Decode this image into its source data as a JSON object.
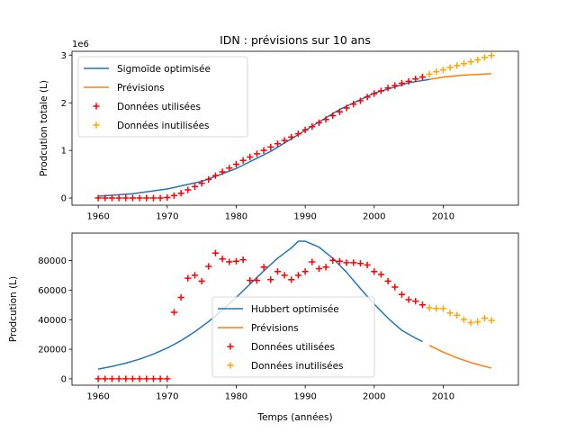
{
  "chart_data": [
    {
      "type": "line",
      "title": "IDN : prévisions sur 10 ans",
      "xlabel": "",
      "ylabel": "Prodcution totale (L)",
      "y_offset_label": "1e6",
      "xlim": [
        1956.2,
        2020.9
      ],
      "ylim": [
        -0.15,
        3.08
      ],
      "xticks": [
        1960,
        1970,
        1980,
        1990,
        2000,
        2010
      ],
      "yticks": [
        0,
        1,
        2,
        3
      ],
      "legend_position": "top-left",
      "legend": [
        "Sigmoïde optimisée",
        "Prévisions",
        "Données utilisées",
        "Données inutilisées"
      ],
      "series": [
        {
          "name": "Sigmoïde optimisée",
          "kind": "line",
          "color": "#1f77b4",
          "x": [
            1960,
            1965,
            1970,
            1975,
            1980,
            1985,
            1990,
            1995,
            2000,
            2005,
            2008
          ],
          "y": [
            0.04,
            0.09,
            0.19,
            0.35,
            0.62,
            0.98,
            1.42,
            1.86,
            2.2,
            2.42,
            2.49
          ]
        },
        {
          "name": "Prévisions",
          "kind": "line",
          "color": "#ff7f0e",
          "x": [
            2008,
            2010,
            2013,
            2017
          ],
          "y": [
            2.49,
            2.54,
            2.58,
            2.61
          ]
        },
        {
          "name": "Données utilisées",
          "kind": "marker",
          "color": "#ff0000",
          "x": [
            1960,
            1961,
            1962,
            1963,
            1964,
            1965,
            1966,
            1967,
            1968,
            1969,
            1970,
            1971,
            1972,
            1973,
            1974,
            1975,
            1976,
            1977,
            1978,
            1979,
            1980,
            1981,
            1982,
            1983,
            1984,
            1985,
            1986,
            1987,
            1988,
            1989,
            1990,
            1991,
            1992,
            1993,
            1994,
            1995,
            1996,
            1997,
            1998,
            1999,
            2000,
            2001,
            2002,
            2003,
            2004,
            2005,
            2006,
            2007
          ],
          "y": [
            0,
            0,
            0,
            0,
            0,
            0,
            0,
            0,
            0,
            0,
            0.01,
            0.05,
            0.1,
            0.17,
            0.24,
            0.31,
            0.39,
            0.47,
            0.55,
            0.63,
            0.71,
            0.79,
            0.86,
            0.93,
            1.0,
            1.07,
            1.14,
            1.21,
            1.28,
            1.35,
            1.43,
            1.5,
            1.58,
            1.65,
            1.73,
            1.81,
            1.89,
            1.97,
            2.04,
            2.12,
            2.19,
            2.25,
            2.31,
            2.36,
            2.41,
            2.45,
            2.5,
            2.54
          ]
        },
        {
          "name": "Données inutilisées",
          "kind": "marker",
          "color": "#ffa500",
          "x": [
            2008,
            2009,
            2010,
            2011,
            2012,
            2013,
            2014,
            2015,
            2016,
            2017
          ],
          "y": [
            2.6,
            2.65,
            2.69,
            2.74,
            2.78,
            2.82,
            2.86,
            2.9,
            2.95,
            2.99
          ]
        }
      ]
    },
    {
      "type": "line",
      "title": "",
      "xlabel": "Temps (années)",
      "ylabel": "Prodcution (L)",
      "xlim": [
        1956.2,
        2020.9
      ],
      "ylim": [
        -4300,
        98500
      ],
      "xticks": [
        1960,
        1970,
        1980,
        1990,
        2000,
        2010
      ],
      "yticks": [
        0,
        20000,
        40000,
        60000,
        80000
      ],
      "legend_position": "lower-center",
      "legend": [
        "Hubbert optimisée",
        "Prévisions",
        "Données utilisées",
        "Données inutilisées"
      ],
      "series": [
        {
          "name": "Hubbert optimisée",
          "kind": "line",
          "color": "#1f77b4",
          "x": [
            1960,
            1962,
            1964,
            1966,
            1968,
            1970,
            1972,
            1974,
            1976,
            1978,
            1980,
            1982,
            1984,
            1986,
            1988,
            1989,
            1990,
            1992,
            1994,
            1996,
            1998,
            2000,
            2002,
            2004,
            2006,
            2007
          ],
          "y": [
            6600,
            8400,
            10600,
            13300,
            16700,
            20800,
            25800,
            31800,
            38700,
            46500,
            55000,
            64000,
            73000,
            81500,
            88500,
            93000,
            93000,
            89000,
            81500,
            72000,
            61000,
            50500,
            41000,
            32800,
            27500,
            25200
          ]
        },
        {
          "name": "Prévisions",
          "kind": "line",
          "color": "#ff7f0e",
          "x": [
            2008,
            2010,
            2012,
            2014,
            2016,
            2017
          ],
          "y": [
            22600,
            18000,
            14200,
            11000,
            8400,
            7300
          ]
        },
        {
          "name": "Données utilisées",
          "kind": "marker",
          "color": "#ff0000",
          "x": [
            1960,
            1961,
            1962,
            1963,
            1964,
            1965,
            1966,
            1967,
            1968,
            1969,
            1970,
            1971,
            1972,
            1973,
            1974,
            1975,
            1976,
            1977,
            1978,
            1979,
            1980,
            1981,
            1982,
            1983,
            1984,
            1985,
            1986,
            1987,
            1988,
            1989,
            1990,
            1991,
            1992,
            1993,
            1994,
            1995,
            1996,
            1997,
            1998,
            1999,
            2000,
            2001,
            2002,
            2003,
            2004,
            2005,
            2006,
            2007
          ],
          "y": [
            0,
            0,
            0,
            0,
            0,
            0,
            0,
            0,
            0,
            0,
            0,
            45000,
            55000,
            68000,
            70000,
            66000,
            76000,
            85000,
            81000,
            79000,
            79500,
            80500,
            66500,
            66500,
            75500,
            67000,
            72500,
            70000,
            67000,
            70000,
            72500,
            79000,
            74500,
            75500,
            80000,
            79500,
            78500,
            78500,
            78000,
            77000,
            72500,
            70500,
            66000,
            62000,
            57000,
            53500,
            52500,
            50000
          ]
        },
        {
          "name": "Données inutilisées",
          "kind": "marker",
          "color": "#ffa500",
          "x": [
            2008,
            2009,
            2010,
            2011,
            2012,
            2013,
            2014,
            2015,
            2016,
            2017
          ],
          "y": [
            48000,
            47500,
            47500,
            44500,
            43000,
            40000,
            38000,
            38500,
            41000,
            39500
          ]
        }
      ]
    }
  ]
}
